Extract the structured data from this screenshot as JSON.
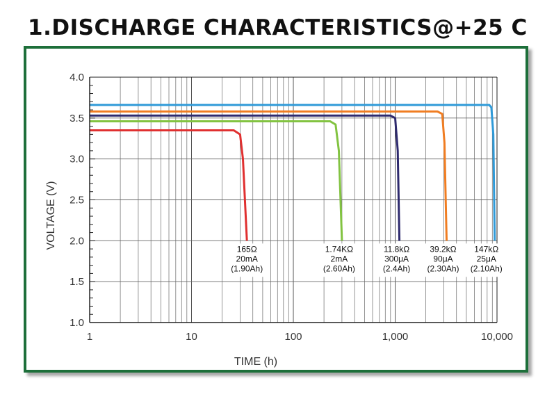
{
  "page": {
    "title": "1.DISCHARGE CHARACTERISTICS@+25 C"
  },
  "colors": {
    "frame": "#1d6f3a"
  },
  "chart_data": {
    "type": "line",
    "title": "1.DISCHARGE CHARACTERISTICS@+25 C",
    "xlabel": "TIME (h)",
    "ylabel": "VOLTAGE (V)",
    "xscale": "log",
    "xlim": [
      1,
      10000
    ],
    "ylim": [
      1.0,
      4.0
    ],
    "x_ticks": [
      1,
      10,
      100,
      1000,
      10000
    ],
    "x_tick_labels": [
      "1",
      "10",
      "100",
      "1,000",
      "10,000"
    ],
    "y_ticks": [
      1.0,
      1.5,
      2.0,
      2.5,
      3.0,
      3.5,
      4.0
    ],
    "y_tick_labels": [
      "1.0",
      "1.5",
      "2.0",
      "2.5",
      "3.0",
      "3.5",
      "4.0"
    ],
    "grid": true,
    "series": [
      {
        "name": "165Ω",
        "color": "#e03030",
        "lines": [
          "165Ω",
          "20mA",
          "(1.90Ah)"
        ],
        "x": [
          1,
          26,
          30,
          32,
          35
        ],
        "y": [
          3.35,
          3.35,
          3.3,
          3.0,
          2.0
        ]
      },
      {
        "name": "1.74KΩ",
        "color": "#82c341",
        "lines": [
          "1.74KΩ",
          "2mA",
          "(2.60Ah)"
        ],
        "x": [
          1,
          230,
          260,
          280,
          300
        ],
        "y": [
          3.46,
          3.46,
          3.42,
          3.1,
          2.0
        ]
      },
      {
        "name": "11.8kΩ",
        "color": "#2e2a6e",
        "lines": [
          "11.8kΩ",
          "300μA",
          "(2.4Ah)"
        ],
        "x": [
          1,
          900,
          1000,
          1060,
          1100
        ],
        "y": [
          3.53,
          3.53,
          3.5,
          3.1,
          2.0
        ]
      },
      {
        "name": "39.2kΩ",
        "color": "#f07d22",
        "lines": [
          "39.2kΩ",
          "90μA",
          "(2.30Ah)"
        ],
        "x": [
          1,
          2600,
          2900,
          3050,
          3200
        ],
        "y": [
          3.58,
          3.58,
          3.55,
          3.2,
          2.0
        ]
      },
      {
        "name": "147kΩ",
        "color": "#2f9ad8",
        "lines": [
          "147kΩ",
          "25μA",
          "(2.10Ah)"
        ],
        "x": [
          1,
          8400,
          8800,
          9200,
          9500
        ],
        "y": [
          3.66,
          3.66,
          3.63,
          3.3,
          2.0
        ]
      }
    ]
  }
}
